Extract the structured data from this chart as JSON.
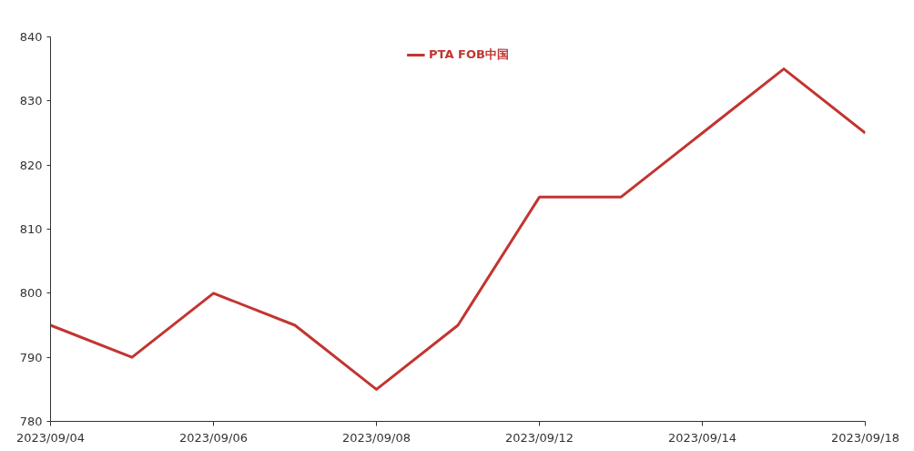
{
  "chart_data": {
    "type": "line",
    "categories": [
      "2023/09/04",
      null,
      "2023/09/06",
      null,
      "2023/09/08",
      null,
      "2023/09/12",
      null,
      "2023/09/14",
      null,
      "2023/09/18"
    ],
    "series": [
      {
        "name": "PTA FOB中国",
        "color": "#c23531",
        "values": [
          795,
          790,
          800,
          795,
          785,
          795,
          815,
          815,
          825,
          835,
          825
        ]
      }
    ],
    "ylim": [
      780,
      840
    ],
    "yticks": [
      780,
      790,
      800,
      810,
      820,
      830,
      840
    ],
    "grid": false,
    "legend": "top",
    "marker": "none",
    "line_style": "solid"
  }
}
